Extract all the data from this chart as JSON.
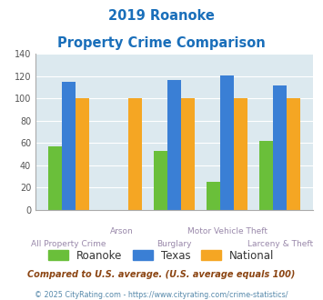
{
  "title_line1": "2019 Roanoke",
  "title_line2": "Property Crime Comparison",
  "title_color": "#1a6fba",
  "categories": [
    "All Property Crime",
    "Arson",
    "Burglary",
    "Motor Vehicle Theft",
    "Larceny & Theft"
  ],
  "roanoke": [
    57,
    0,
    53,
    25,
    62
  ],
  "texas": [
    115,
    0,
    117,
    121,
    112
  ],
  "national": [
    100,
    100,
    100,
    100,
    100
  ],
  "bar_colors": {
    "roanoke": "#6abf3a",
    "texas": "#3a7fd5",
    "national": "#f5a623"
  },
  "ylim": [
    0,
    140
  ],
  "yticks": [
    0,
    20,
    40,
    60,
    80,
    100,
    120,
    140
  ],
  "plot_bg": "#dce9ef",
  "legend_labels": [
    "Roanoke",
    "Texas",
    "National"
  ],
  "footer_text1": "Compared to U.S. average. (U.S. average equals 100)",
  "footer_text2": "© 2025 CityRating.com - https://www.cityrating.com/crime-statistics/",
  "footer_color1": "#8b4513",
  "footer_color2": "#5588aa",
  "label_color": "#9988aa",
  "legend_text_color": "#333333"
}
